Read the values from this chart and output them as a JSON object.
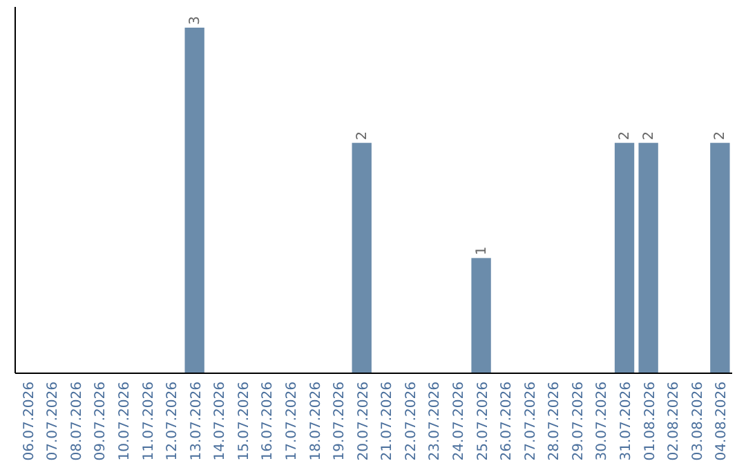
{
  "chart_data": {
    "type": "bar",
    "categories": [
      "06.07.2026",
      "07.07.2026",
      "08.07.2026",
      "09.07.2026",
      "10.07.2026",
      "11.07.2026",
      "12.07.2026",
      "13.07.2026",
      "14.07.2026",
      "15.07.2026",
      "16.07.2026",
      "17.07.2026",
      "18.07.2026",
      "19.07.2026",
      "20.07.2026",
      "21.07.2026",
      "22.07.2026",
      "23.07.2026",
      "24.07.2026",
      "25.07.2026",
      "26.07.2026",
      "27.07.2026",
      "28.07.2026",
      "29.07.2026",
      "30.07.2026",
      "31.07.2026",
      "01.08.2026",
      "02.08.2026",
      "03.08.2026",
      "04.08.2026"
    ],
    "values": [
      0,
      0,
      0,
      0,
      0,
      0,
      0,
      3,
      0,
      0,
      0,
      0,
      0,
      0,
      2,
      0,
      0,
      0,
      0,
      1,
      0,
      0,
      0,
      0,
      0,
      2,
      2,
      0,
      0,
      2
    ],
    "value_labels": [
      null,
      null,
      null,
      null,
      null,
      null,
      null,
      "3",
      null,
      null,
      null,
      null,
      null,
      null,
      "2",
      null,
      null,
      null,
      null,
      "1",
      null,
      null,
      null,
      null,
      null,
      "2",
      "2",
      null,
      null,
      "2"
    ],
    "color": "#6b8cab"
  }
}
